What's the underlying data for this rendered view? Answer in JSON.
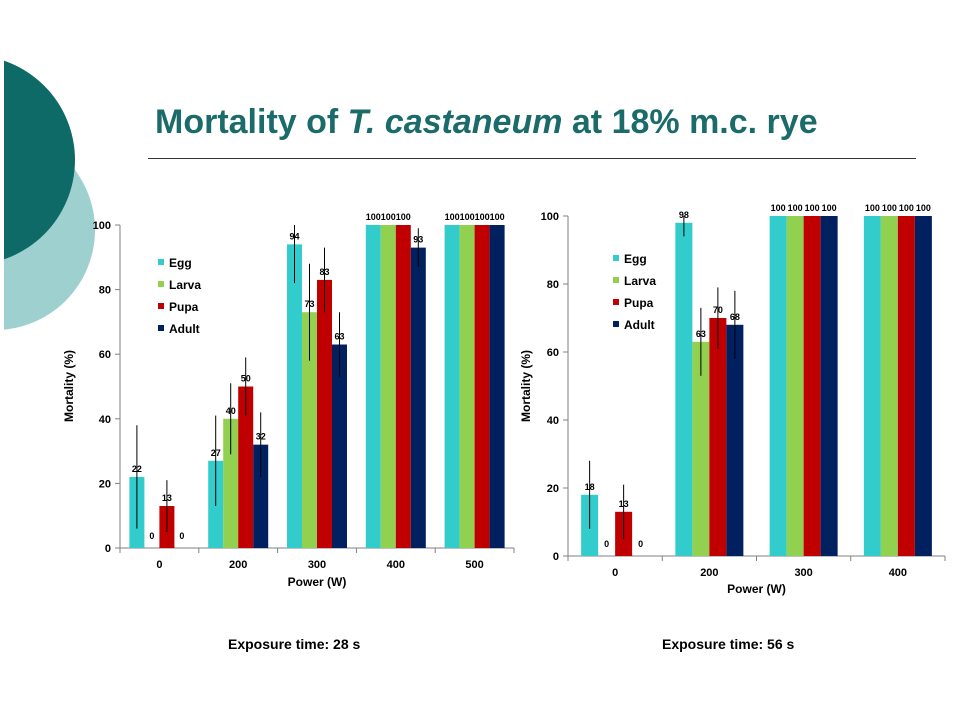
{
  "slide": {
    "title_prefix": "Mortality of ",
    "title_italic": "T. castaneum",
    "title_suffix": " at 18% m.c. rye",
    "colors": {
      "title": "#1b6b6b",
      "deco_dark": "#0e6a67",
      "deco_light": "#9fd0d0"
    }
  },
  "captions": [
    {
      "label": "Exposure time:",
      "value": "28 s"
    },
    {
      "label": "Exposure time:",
      "value": "56 s"
    }
  ],
  "chart_data": [
    {
      "type": "bar",
      "xlabel": "Power (W)",
      "ylabel": "Mortality (%)",
      "ylim": [
        0,
        100
      ],
      "yticks": [
        "0",
        "20",
        "40",
        "60",
        "80",
        "100"
      ],
      "grid": false,
      "legend_position": "top-left",
      "categories": [
        "0",
        "200",
        "300",
        "400",
        "500"
      ],
      "series": [
        {
          "name": "Egg",
          "color": "#33cccc",
          "values": [
            22,
            27,
            94,
            100,
            100
          ],
          "labels": [
            "22",
            "27",
            "94",
            "100",
            "100"
          ],
          "err": [
            16,
            14,
            12,
            0,
            0
          ]
        },
        {
          "name": "Larva",
          "color": "#92d050",
          "values": [
            0,
            40,
            73,
            100,
            100
          ],
          "labels": [
            "0",
            "40",
            "73",
            "100",
            "100"
          ],
          "err": [
            0,
            11,
            15,
            0,
            0
          ]
        },
        {
          "name": "Pupa",
          "color": "#c00000",
          "values": [
            13,
            50,
            83,
            100,
            100
          ],
          "labels": [
            "13",
            "50",
            "83",
            "100",
            "100"
          ],
          "err": [
            8,
            9,
            10,
            0,
            0
          ]
        },
        {
          "name": "Adult",
          "color": "#002060",
          "values": [
            0,
            32,
            63,
            93,
            100
          ],
          "labels": [
            "0",
            "32",
            "63",
            "93",
            "100"
          ],
          "err": [
            0,
            10,
            10,
            6,
            0
          ]
        }
      ]
    },
    {
      "type": "bar",
      "xlabel": "Power (W)",
      "ylabel": "Mortality (%)",
      "ylim": [
        0,
        100
      ],
      "yticks": [
        "0",
        "20",
        "40",
        "60",
        "80",
        "100"
      ],
      "grid": false,
      "legend_position": "top-left",
      "categories": [
        "0",
        "200",
        "300",
        "400"
      ],
      "series": [
        {
          "name": "Egg",
          "color": "#33cccc",
          "values": [
            18,
            98,
            100,
            100
          ],
          "labels": [
            "18",
            "98",
            "100",
            "100"
          ],
          "err": [
            10,
            4,
            0,
            0
          ]
        },
        {
          "name": "Larva",
          "color": "#92d050",
          "values": [
            0,
            63,
            100,
            100
          ],
          "labels": [
            "0",
            "63",
            "100",
            "100"
          ],
          "err": [
            0,
            10,
            0,
            0
          ]
        },
        {
          "name": "Pupa",
          "color": "#c00000",
          "values": [
            13,
            70,
            100,
            100
          ],
          "labels": [
            "13",
            "70",
            "100",
            "100"
          ],
          "err": [
            8,
            9,
            0,
            0
          ]
        },
        {
          "name": "Adult",
          "color": "#002060",
          "values": [
            0,
            68,
            100,
            100
          ],
          "labels": [
            "0",
            "68",
            "100",
            "100"
          ],
          "err": [
            0,
            10,
            0,
            0
          ]
        }
      ]
    }
  ]
}
